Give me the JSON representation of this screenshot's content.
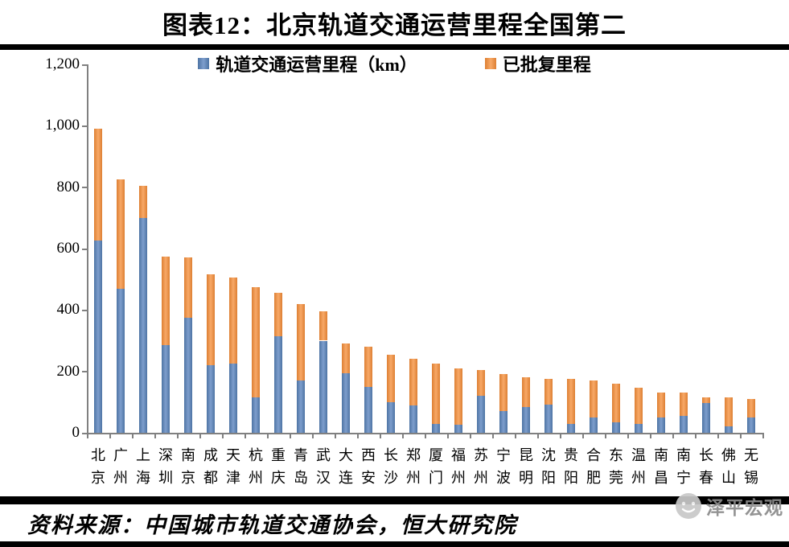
{
  "title": "图表12：北京轨道交通运营里程全国第二",
  "legend": [
    {
      "label": "轨道交通运营里程（km）",
      "color_key": "blue"
    },
    {
      "label": "已批复里程",
      "color_key": "orange"
    }
  ],
  "source_note": "资料来源：中国城市轨道交通协会，恒大研究院",
  "watermark": "泽平宏观",
  "colors": {
    "bar_blue_edge": "#4d74a4",
    "bar_blue_center": "#7e9ecd",
    "bar_orange_edge": "#dd7f33",
    "bar_orange_center": "#f8a967",
    "axis": "#808080",
    "rule": "#000000",
    "watermark_text": "#8a8a8a",
    "watermark_circle": "#c8c8c8"
  },
  "chart_data": {
    "type": "bar",
    "stacked": true,
    "title": "图表12：北京轨道交通运营里程全国第二",
    "xlabel": "",
    "ylabel": "",
    "ylim": [
      0,
      1200
    ],
    "yticks": [
      0,
      200,
      400,
      600,
      800,
      1000,
      1200
    ],
    "ytick_labels": [
      "0",
      "200",
      "400",
      "600",
      "800",
      "1,000",
      "1,200"
    ],
    "grid": false,
    "legend_position": "top",
    "categories": [
      "北京",
      "广州",
      "上海",
      "深圳",
      "南京",
      "成都",
      "天津",
      "杭州",
      "重庆",
      "青岛",
      "武汉",
      "大连",
      "西安",
      "长沙",
      "郑州",
      "厦门",
      "福州",
      "苏州",
      "宁波",
      "昆明",
      "沈阳",
      "贵阳",
      "合肥",
      "东莞",
      "温州",
      "南昌",
      "南宁",
      "长春",
      "佛山",
      "无锡"
    ],
    "series": [
      {
        "name": "轨道交通运营里程（km）",
        "color_key": "blue",
        "values": [
          625,
          470,
          700,
          285,
          375,
          220,
          225,
          115,
          315,
          170,
          300,
          195,
          150,
          100,
          90,
          30,
          25,
          120,
          70,
          85,
          92,
          30,
          50,
          35,
          30,
          50,
          55,
          96,
          20,
          50
        ]
      },
      {
        "name": "已批复里程",
        "color_key": "orange",
        "note": "stacked segment on top of operating mileage",
        "values": [
          365,
          355,
          105,
          290,
          195,
          295,
          280,
          360,
          140,
          250,
          95,
          95,
          130,
          155,
          150,
          195,
          185,
          85,
          120,
          95,
          83,
          145,
          120,
          125,
          118,
          80,
          75,
          20,
          95,
          60
        ]
      }
    ],
    "totals": [
      990,
      825,
      805,
      575,
      570,
      515,
      505,
      475,
      455,
      420,
      395,
      290,
      280,
      255,
      240,
      225,
      210,
      205,
      190,
      180,
      175,
      175,
      170,
      160,
      148,
      130,
      130,
      116,
      115,
      110
    ]
  }
}
